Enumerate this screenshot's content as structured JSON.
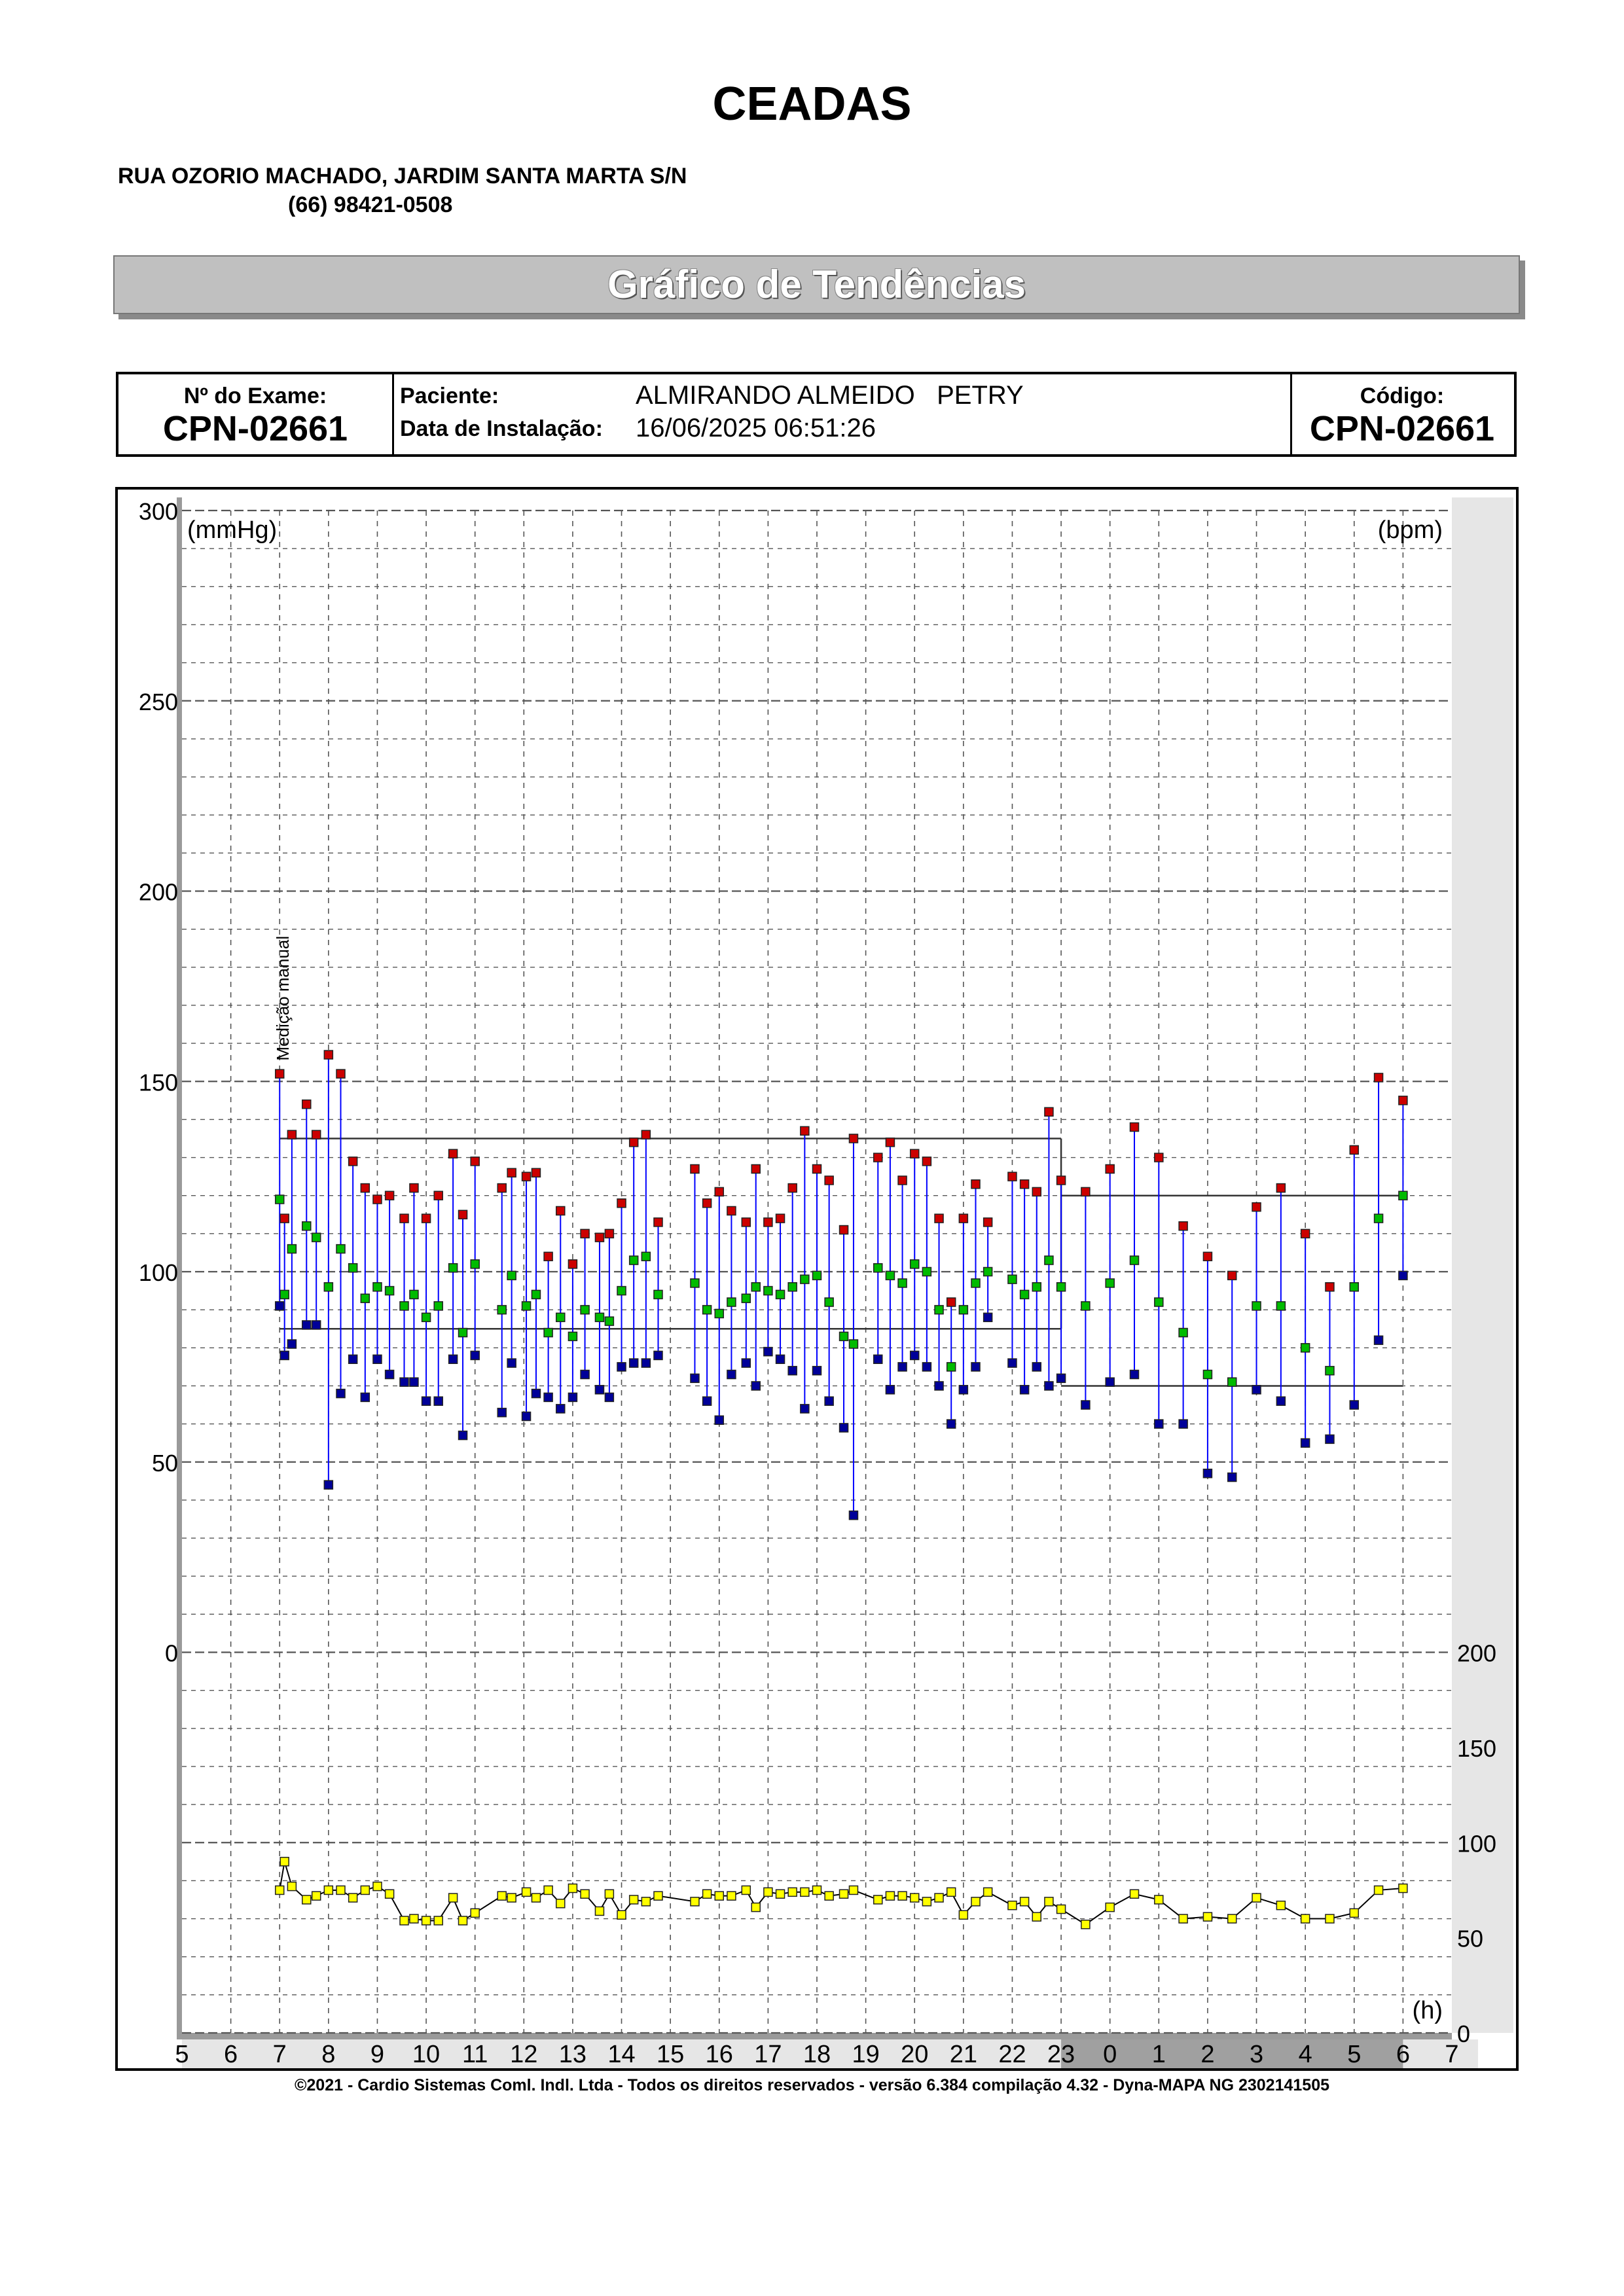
{
  "header": {
    "clinic_name": "CEADAS",
    "address": "RUA OZORIO MACHADO, JARDIM SANTA MARTA S/N",
    "phone": "(66) 98421-0508",
    "banner_title": "Gráfico de Tendências"
  },
  "info": {
    "exam_label": "Nº do Exame:",
    "exam_value": "CPN-02661",
    "patient_label": "Paciente:",
    "patient_value": "ALMIRANDO ALMEIDO   PETRY",
    "install_label": "Data de Instalação:",
    "install_value": "16/06/2025 06:51:26",
    "code_label": "Código:",
    "code_value": "CPN-02661"
  },
  "footer": "©2021 - Cardio Sistemas Coml. Indl. Ltda - Todos os direitos reservados - versão 6.384 compilação 4.32 - Dyna-MAPA NG 2302141505",
  "colors": {
    "systolic": "#cc0000",
    "mean": "#00bb00",
    "diastolic": "#000099",
    "heart_rate": "#ffff00",
    "bp_line": "#0000ff",
    "grid": "#555555",
    "night_band": "#a0a0a0"
  },
  "chart_data": {
    "type": "scatter",
    "left_unit": "(mmHg)",
    "right_unit": "(bpm)",
    "x_unit": "(h)",
    "annotation": "Medição manual",
    "x_ticks": [
      "5",
      "6",
      "7",
      "8",
      "9",
      "10",
      "11",
      "12",
      "13",
      "14",
      "15",
      "16",
      "17",
      "18",
      "19",
      "20",
      "21",
      "22",
      "23",
      "0",
      "1",
      "2",
      "3",
      "4",
      "5",
      "6",
      "7"
    ],
    "left_ticks": [
      "300",
      "250",
      "200",
      "150",
      "100",
      "50",
      "0"
    ],
    "right_ticks": [
      "200",
      "150",
      "100",
      "50",
      "0"
    ],
    "left_ylim": [
      -100,
      300
    ],
    "right_ylim": [
      0,
      200
    ],
    "night_band_hours": [
      23,
      30
    ],
    "reference_lines": [
      {
        "period": "day",
        "x_range": [
          7,
          23
        ],
        "systolic": 135,
        "diastolic": 85
      },
      {
        "period": "night",
        "x_range": [
          23,
          30
        ],
        "systolic": 120,
        "diastolic": 70
      }
    ],
    "bp_readings": [
      [
        7.0,
        152,
        119,
        91
      ],
      [
        7.1,
        114,
        94,
        78
      ],
      [
        7.25,
        136,
        106,
        81
      ],
      [
        7.55,
        144,
        112,
        86
      ],
      [
        7.75,
        136,
        109,
        86
      ],
      [
        8.0,
        157,
        96,
        44
      ],
      [
        8.25,
        152,
        106,
        68
      ],
      [
        8.5,
        129,
        101,
        77
      ],
      [
        8.75,
        122,
        93,
        67
      ],
      [
        9.0,
        119,
        96,
        77
      ],
      [
        9.25,
        120,
        95,
        73
      ],
      [
        9.55,
        114,
        91,
        71
      ],
      [
        9.75,
        122,
        94,
        71
      ],
      [
        10.0,
        114,
        88,
        66
      ],
      [
        10.25,
        120,
        91,
        66
      ],
      [
        10.55,
        131,
        101,
        77
      ],
      [
        10.75,
        115,
        84,
        57
      ],
      [
        11.0,
        129,
        102,
        78
      ],
      [
        11.55,
        122,
        90,
        63
      ],
      [
        11.75,
        126,
        99,
        76
      ],
      [
        12.05,
        125,
        91,
        62
      ],
      [
        12.25,
        126,
        94,
        68
      ],
      [
        12.5,
        104,
        84,
        67
      ],
      [
        12.75,
        116,
        88,
        64
      ],
      [
        13.0,
        102,
        83,
        67
      ],
      [
        13.25,
        110,
        90,
        73
      ],
      [
        13.55,
        109,
        88,
        69
      ],
      [
        13.75,
        110,
        87,
        67
      ],
      [
        14.0,
        118,
        95,
        75
      ],
      [
        14.25,
        134,
        103,
        76
      ],
      [
        14.5,
        136,
        104,
        76
      ],
      [
        14.75,
        113,
        94,
        78
      ],
      [
        15.5,
        127,
        97,
        72
      ],
      [
        15.75,
        118,
        90,
        66
      ],
      [
        16.0,
        121,
        89,
        61
      ],
      [
        16.25,
        116,
        92,
        73
      ],
      [
        16.55,
        113,
        93,
        76
      ],
      [
        16.75,
        127,
        96,
        70
      ],
      [
        17.0,
        113,
        95,
        79
      ],
      [
        17.25,
        114,
        94,
        77
      ],
      [
        17.5,
        122,
        96,
        74
      ],
      [
        17.75,
        137,
        98,
        64
      ],
      [
        18.0,
        127,
        99,
        74
      ],
      [
        18.25,
        124,
        92,
        66
      ],
      [
        18.55,
        111,
        83,
        59
      ],
      [
        18.75,
        135,
        81,
        36
      ],
      [
        19.25,
        130,
        101,
        77
      ],
      [
        19.5,
        134,
        99,
        69
      ],
      [
        19.75,
        124,
        97,
        75
      ],
      [
        20.0,
        131,
        102,
        78
      ],
      [
        20.25,
        129,
        100,
        75
      ],
      [
        20.5,
        114,
        90,
        70
      ],
      [
        20.75,
        92,
        75,
        60
      ],
      [
        21.0,
        114,
        90,
        69
      ],
      [
        21.25,
        123,
        97,
        75
      ],
      [
        21.5,
        113,
        100,
        88
      ],
      [
        22.0,
        125,
        98,
        76
      ],
      [
        22.25,
        123,
        94,
        69
      ],
      [
        22.5,
        121,
        96,
        75
      ],
      [
        22.75,
        142,
        103,
        70
      ],
      [
        23.0,
        124,
        96,
        72
      ],
      [
        23.5,
        121,
        91,
        65
      ],
      [
        24.0,
        127,
        97,
        71
      ],
      [
        24.5,
        138,
        103,
        73
      ],
      [
        25.0,
        130,
        92,
        60
      ],
      [
        25.5,
        112,
        84,
        60
      ],
      [
        26.0,
        104,
        73,
        47
      ],
      [
        26.5,
        99,
        71,
        46
      ],
      [
        27.0,
        117,
        91,
        69
      ],
      [
        27.5,
        122,
        91,
        66
      ],
      [
        28.0,
        110,
        80,
        55
      ],
      [
        28.5,
        96,
        74,
        56
      ],
      [
        29.0,
        132,
        96,
        65
      ],
      [
        29.5,
        151,
        114,
        82
      ],
      [
        30.0,
        145,
        120,
        99
      ]
    ],
    "heart_rate": [
      [
        7.0,
        75
      ],
      [
        7.1,
        90
      ],
      [
        7.25,
        77
      ],
      [
        7.55,
        70
      ],
      [
        7.75,
        72
      ],
      [
        8.0,
        75
      ],
      [
        8.25,
        75
      ],
      [
        8.5,
        71
      ],
      [
        8.75,
        75
      ],
      [
        9.0,
        77
      ],
      [
        9.25,
        73
      ],
      [
        9.55,
        59
      ],
      [
        9.75,
        60
      ],
      [
        10.0,
        59
      ],
      [
        10.25,
        59
      ],
      [
        10.55,
        71
      ],
      [
        10.75,
        59
      ],
      [
        11.0,
        63
      ],
      [
        11.55,
        72
      ],
      [
        11.75,
        71
      ],
      [
        12.05,
        74
      ],
      [
        12.25,
        71
      ],
      [
        12.5,
        75
      ],
      [
        12.75,
        68
      ],
      [
        13.0,
        76
      ],
      [
        13.25,
        73
      ],
      [
        13.55,
        64
      ],
      [
        13.75,
        73
      ],
      [
        14.0,
        62
      ],
      [
        14.25,
        70
      ],
      [
        14.5,
        69
      ],
      [
        14.75,
        72
      ],
      [
        15.5,
        69
      ],
      [
        15.75,
        73
      ],
      [
        16.0,
        72
      ],
      [
        16.25,
        72
      ],
      [
        16.55,
        75
      ],
      [
        16.75,
        66
      ],
      [
        17.0,
        74
      ],
      [
        17.25,
        73
      ],
      [
        17.5,
        74
      ],
      [
        17.75,
        74
      ],
      [
        18.0,
        75
      ],
      [
        18.25,
        72
      ],
      [
        18.55,
        73
      ],
      [
        18.75,
        75
      ],
      [
        19.25,
        70
      ],
      [
        19.5,
        72
      ],
      [
        19.75,
        72
      ],
      [
        20.0,
        71
      ],
      [
        20.25,
        69
      ],
      [
        20.5,
        71
      ],
      [
        20.75,
        74
      ],
      [
        21.0,
        62
      ],
      [
        21.25,
        69
      ],
      [
        21.5,
        74
      ],
      [
        22.0,
        67
      ],
      [
        22.25,
        69
      ],
      [
        22.5,
        61
      ],
      [
        22.75,
        69
      ],
      [
        23.0,
        65
      ],
      [
        23.5,
        57
      ],
      [
        24.0,
        66
      ],
      [
        24.5,
        73
      ],
      [
        25.0,
        70
      ],
      [
        25.5,
        60
      ],
      [
        26.0,
        61
      ],
      [
        26.5,
        60
      ],
      [
        27.0,
        71
      ],
      [
        27.5,
        67
      ],
      [
        28.0,
        60
      ],
      [
        28.5,
        60
      ],
      [
        29.0,
        63
      ],
      [
        29.5,
        75
      ],
      [
        30.0,
        76
      ]
    ]
  }
}
